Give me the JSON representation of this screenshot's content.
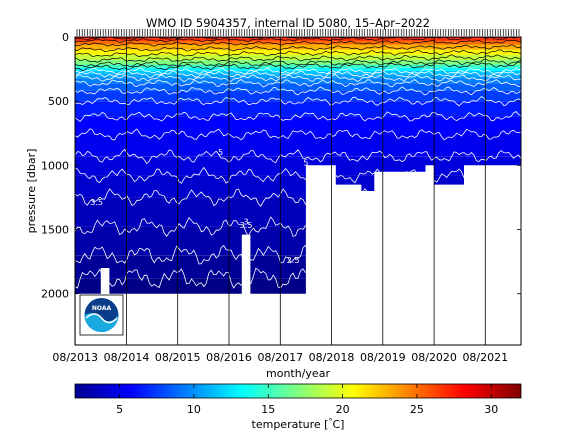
{
  "chart_data": {
    "type": "heatmap",
    "title": "WMO ID 5904357, internal ID 5080, 15–Apr–2022",
    "xlabel": "month/year",
    "ylabel": "pressure [dbar]",
    "x_ticks": [
      "08/2013",
      "08/2014",
      "08/2015",
      "08/2016",
      "08/2017",
      "08/2018",
      "08/2019",
      "08/2020",
      "08/2021"
    ],
    "x_range": [
      "2013-08",
      "2022-04"
    ],
    "y_ticks": [
      0,
      500,
      1000,
      1500,
      2000
    ],
    "y_range": [
      0,
      2400
    ],
    "y_reversed": true,
    "colorbar": {
      "label": "temperature [°C]",
      "range": [
        2,
        32
      ],
      "ticks": [
        5,
        10,
        15,
        20,
        25,
        30
      ],
      "colormap": "jet"
    },
    "contour_labels": [
      {
        "text": "3.5",
        "x": "2014-01",
        "y": 1310
      },
      {
        "text": "3",
        "x": "2016-12",
        "y": 1460
      },
      {
        "text": "3.5",
        "x": "2016-12",
        "y": 1490
      },
      {
        "text": "2.5",
        "x": "2017-11",
        "y": 1760
      },
      {
        "text": "5",
        "x": "2016-06",
        "y": 920
      },
      {
        "text": "5",
        "x": "2018-02",
        "y": 1000
      }
    ],
    "profile_depth_max": [
      {
        "x": "2013-08",
        "depth": 2000
      },
      {
        "x": "2014-01",
        "depth": 2000
      },
      {
        "x": "2014-02",
        "depth": 1800
      },
      {
        "x": "2014-04",
        "depth": 2000
      },
      {
        "x": "2016-10",
        "depth": 2000
      },
      {
        "x": "2016-11",
        "depth": 1540
      },
      {
        "x": "2017-01",
        "depth": 2000
      },
      {
        "x": "2018-01",
        "depth": 2000
      },
      {
        "x": "2018-02",
        "depth": 1000
      },
      {
        "x": "2018-09",
        "depth": 1150
      },
      {
        "x": "2019-03",
        "depth": 1200
      },
      {
        "x": "2019-06",
        "depth": 1050
      },
      {
        "x": "2020-06",
        "depth": 1000
      },
      {
        "x": "2020-08",
        "depth": 1150
      },
      {
        "x": "2021-03",
        "depth": 1000
      },
      {
        "x": "2022-04",
        "depth": 1000
      }
    ],
    "isotherms": [
      28,
      26,
      24,
      22,
      20,
      18,
      16,
      14,
      12,
      11,
      10,
      9,
      8,
      7,
      6,
      5.5,
      5,
      4.5,
      4,
      3.5,
      3,
      2.5
    ],
    "isotherm_depths": [
      10,
      30,
      60,
      100,
      140,
      180,
      215,
      240,
      265,
      290,
      320,
      360,
      420,
      500,
      620,
      760,
      930,
      1080,
      1250,
      1480,
      1700,
      1880
    ],
    "grid": true,
    "logo": "NOAA"
  }
}
